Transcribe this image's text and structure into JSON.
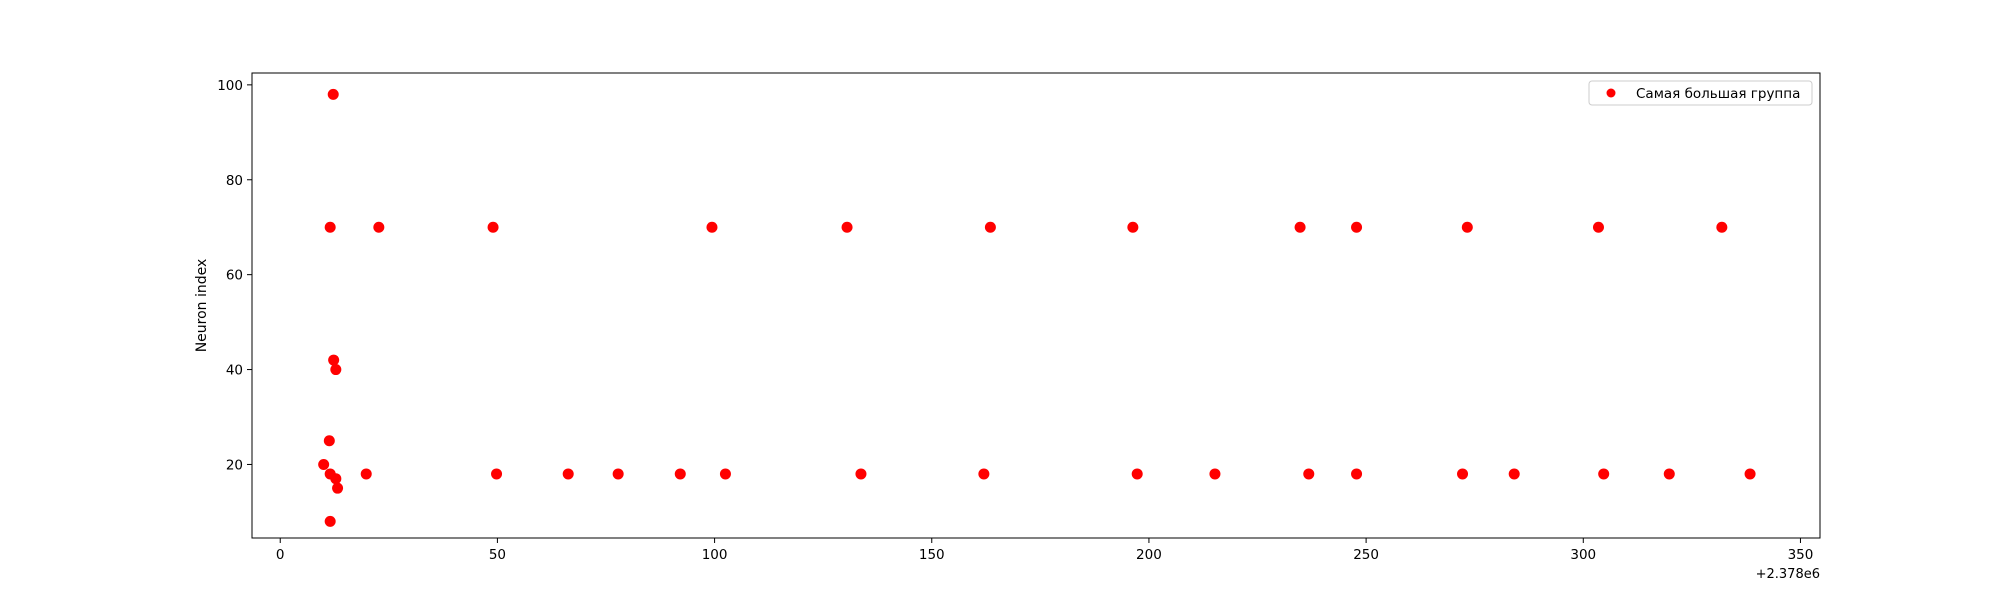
{
  "chart_data": {
    "type": "scatter",
    "title": "",
    "xlabel": "",
    "ylabel": "Neuron index",
    "x_offset_label": "+2.378e6",
    "xlim": [
      -6.5,
      354.5
    ],
    "ylim": [
      4.5,
      102.5
    ],
    "x_ticks": [
      0,
      50,
      100,
      150,
      200,
      250,
      300,
      350
    ],
    "y_ticks": [
      20,
      40,
      60,
      80,
      100
    ],
    "grid": false,
    "legend_position": "top-right",
    "series": [
      {
        "name": "Самая большая группа",
        "color": "#ff0000",
        "marker": "circle",
        "points": [
          [
            10,
            20
          ],
          [
            11.3,
            25
          ],
          [
            11.5,
            70
          ],
          [
            11.5,
            8
          ],
          [
            11.5,
            18
          ],
          [
            12.2,
            98
          ],
          [
            12.3,
            42
          ],
          [
            12.8,
            40
          ],
          [
            12.8,
            17
          ],
          [
            13.2,
            15
          ],
          [
            19.8,
            18
          ],
          [
            22.7,
            70
          ],
          [
            49,
            70
          ],
          [
            49.8,
            18
          ],
          [
            66.3,
            18
          ],
          [
            77.8,
            18
          ],
          [
            92.1,
            18
          ],
          [
            99.4,
            70
          ],
          [
            102.5,
            18
          ],
          [
            130.5,
            70
          ],
          [
            133.7,
            18
          ],
          [
            162,
            18
          ],
          [
            163.5,
            70
          ],
          [
            196.3,
            70
          ],
          [
            197.3,
            18
          ],
          [
            215.2,
            18
          ],
          [
            234.8,
            70
          ],
          [
            236.8,
            18
          ],
          [
            247.8,
            70
          ],
          [
            247.8,
            18
          ],
          [
            272.2,
            18
          ],
          [
            273.3,
            70
          ],
          [
            284.1,
            18
          ],
          [
            303.5,
            70
          ],
          [
            304.7,
            18
          ],
          [
            319.8,
            18
          ],
          [
            331.9,
            70
          ],
          [
            338.4,
            18
          ]
        ]
      }
    ]
  }
}
